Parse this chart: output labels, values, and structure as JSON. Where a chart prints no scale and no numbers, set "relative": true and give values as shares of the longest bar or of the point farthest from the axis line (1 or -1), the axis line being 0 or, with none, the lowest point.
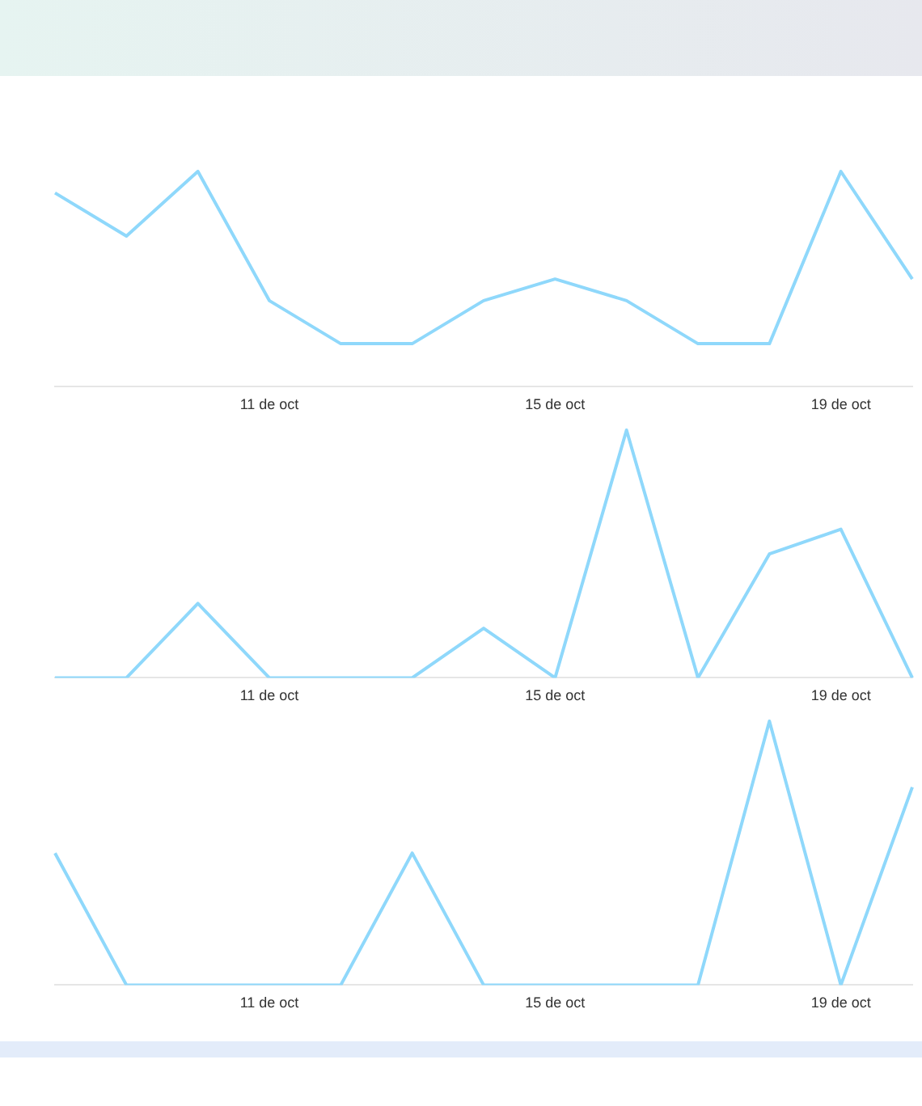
{
  "chart_data": [
    {
      "type": "line",
      "categories": [
        null,
        null,
        null,
        "11 de oct",
        null,
        null,
        null,
        "15 de oct",
        null,
        null,
        null,
        "19 de oct",
        null
      ],
      "relative": true,
      "tick_labels": "x",
      "series": [
        {
          "color": "#8fd8fb",
          "values": [
            0.9,
            0.7,
            1,
            0.4,
            0.2,
            0.2,
            0.4,
            0.5,
            0.4,
            0.2,
            0.2,
            1,
            0.5
          ]
        }
      ]
    },
    {
      "type": "line",
      "categories": [
        null,
        null,
        null,
        "11 de oct",
        null,
        null,
        null,
        "15 de oct",
        null,
        null,
        null,
        "19 de oct",
        null
      ],
      "relative": true,
      "tick_labels": "x",
      "series": [
        {
          "color": "#8fd8fb",
          "values": [
            0,
            0,
            0.3,
            0,
            0,
            0,
            0.2,
            0,
            1,
            0,
            0.5,
            0.6,
            0
          ]
        }
      ]
    },
    {
      "type": "line",
      "categories": [
        null,
        null,
        null,
        "11 de oct",
        null,
        null,
        null,
        "15 de oct",
        null,
        null,
        null,
        "19 de oct",
        null
      ],
      "relative": true,
      "tick_labels": "x",
      "series": [
        {
          "color": "#8fd8fb",
          "values": [
            0.5,
            0,
            0,
            0,
            0,
            0.5,
            0,
            0,
            0,
            0,
            1,
            0,
            0.75
          ]
        }
      ]
    }
  ]
}
